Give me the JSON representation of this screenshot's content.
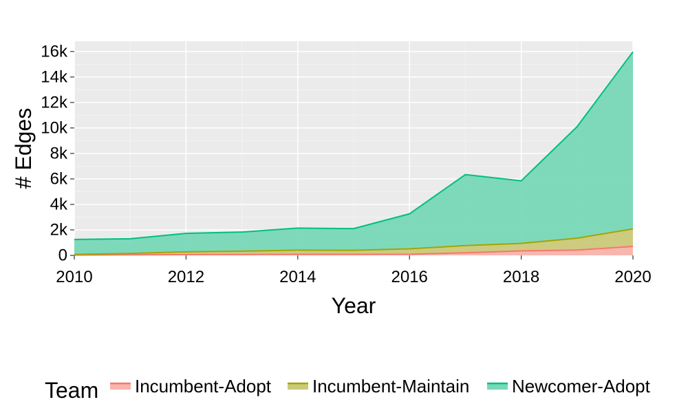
{
  "chart_data": {
    "type": "area",
    "stacked": true,
    "title": "",
    "xlabel": "Year",
    "ylabel": "# Edges",
    "x": [
      2010,
      2011,
      2012,
      2013,
      2014,
      2015,
      2016,
      2017,
      2018,
      2019,
      2020
    ],
    "xlim": [
      2010,
      2020
    ],
    "ylim": [
      0,
      16800
    ],
    "x_ticks": [
      2010,
      2012,
      2014,
      2016,
      2018,
      2020
    ],
    "x_tick_labels": [
      "2010",
      "2012",
      "2014",
      "2016",
      "2018",
      "2020"
    ],
    "y_ticks": [
      0,
      2000,
      4000,
      6000,
      8000,
      10000,
      12000,
      14000,
      16000
    ],
    "y_tick_labels": [
      "0",
      "2k",
      "4k",
      "6k",
      "8k",
      "10k",
      "12k",
      "14k",
      "16k"
    ],
    "grid": true,
    "legend": {
      "title": "Team",
      "placement": "bottom"
    },
    "series": [
      {
        "name": "Incumbent-Adopt",
        "line_color": "#f8766d",
        "fill_color": "#f8b4ad",
        "values": [
          20,
          40,
          60,
          70,
          80,
          80,
          90,
          200,
          350,
          420,
          700
        ]
      },
      {
        "name": "Incumbent-Maintain",
        "line_color": "#a3a500",
        "fill_color": "#cbc97a",
        "values": [
          60,
          110,
          220,
          260,
          330,
          320,
          420,
          570,
          590,
          930,
          1380
        ]
      },
      {
        "name": "Newcomer-Adopt",
        "line_color": "#00bf7d",
        "fill_color": "#78d8b8",
        "values": [
          1170,
          1150,
          1450,
          1500,
          1730,
          1700,
          2750,
          5570,
          4910,
          8750,
          13900
        ]
      }
    ]
  }
}
